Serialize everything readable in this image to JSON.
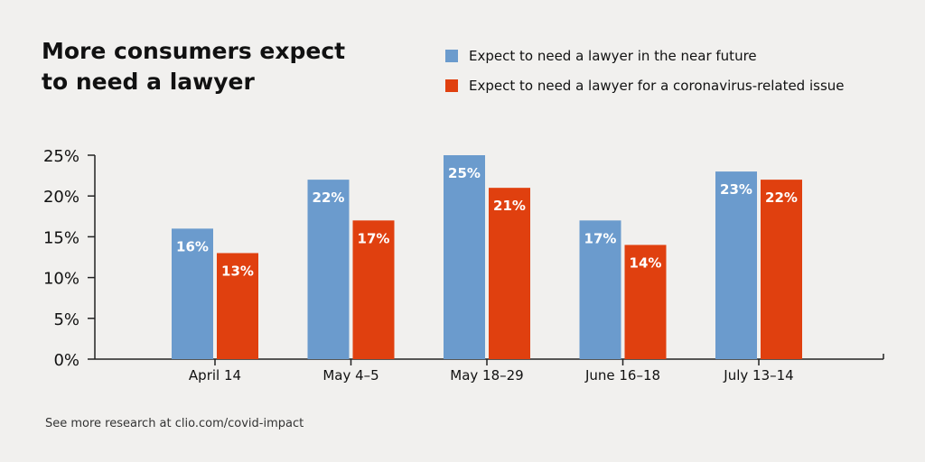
{
  "footer": "See more research at clio.com/covid-impact",
  "colors": {
    "background": "#f1f0ee",
    "near_future": "#6b9bcd",
    "coronavirus": "#e0400f",
    "axis": "#222222",
    "label_text": "#ffffff"
  },
  "chart_data": {
    "type": "bar",
    "title": "More consumers expect to need a lawyer",
    "xlabel": "",
    "ylabel": "",
    "categories": [
      "April 14",
      "May 4–5",
      "May 18–29",
      "June 16–18",
      "July 13–14"
    ],
    "series": [
      {
        "name": "Expect to need a lawyer in the near future",
        "values": [
          16,
          22,
          25,
          17,
          23
        ]
      },
      {
        "name": "Expect to need a lawyer for a coronavirus-related issue",
        "values": [
          13,
          17,
          21,
          14,
          22
        ]
      }
    ],
    "data_labels": [
      [
        "16%",
        "22%",
        "25%",
        "17%",
        "23%"
      ],
      [
        "13%",
        "17%",
        "21%",
        "14%",
        "22%"
      ]
    ],
    "yticks": [
      0,
      5,
      10,
      15,
      20,
      25
    ],
    "ytick_labels": [
      "0%",
      "5%",
      "10%",
      "15%",
      "20%",
      "25%"
    ],
    "ylim": [
      0,
      25
    ],
    "legend_position": "top-right",
    "grid": false
  }
}
